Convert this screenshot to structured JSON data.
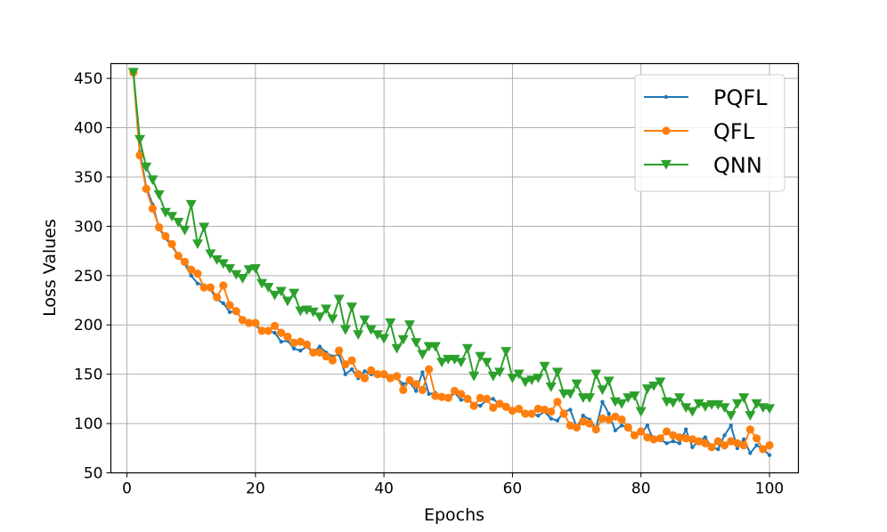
{
  "chart_data": {
    "type": "line",
    "xlabel": "Epochs",
    "ylabel": "Loss Values",
    "xlim": [
      -2.5,
      104.5
    ],
    "ylim": [
      50,
      465
    ],
    "xticks": [
      0,
      20,
      40,
      60,
      80,
      100
    ],
    "yticks": [
      50,
      100,
      150,
      200,
      250,
      300,
      350,
      400,
      450
    ],
    "grid": true,
    "legend_position": "top-right",
    "x": [
      1,
      2,
      3,
      4,
      5,
      6,
      7,
      8,
      9,
      10,
      11,
      12,
      13,
      14,
      15,
      16,
      17,
      18,
      19,
      20,
      21,
      22,
      23,
      24,
      25,
      26,
      27,
      28,
      29,
      30,
      31,
      32,
      33,
      34,
      35,
      36,
      37,
      38,
      39,
      40,
      41,
      42,
      43,
      44,
      45,
      46,
      47,
      48,
      49,
      50,
      51,
      52,
      53,
      54,
      55,
      56,
      57,
      58,
      59,
      60,
      61,
      62,
      63,
      64,
      65,
      66,
      67,
      68,
      69,
      70,
      71,
      72,
      73,
      74,
      75,
      76,
      77,
      78,
      79,
      80,
      81,
      82,
      83,
      84,
      85,
      86,
      87,
      88,
      89,
      90,
      91,
      92,
      93,
      94,
      95,
      96,
      97,
      98,
      99,
      100
    ],
    "series": [
      {
        "name": "PQFL",
        "color": "#1f77b4",
        "marker": "small-dot",
        "values": [
          456,
          376,
          340,
          322,
          298,
          288,
          280,
          270,
          262,
          250,
          242,
          240,
          236,
          226,
          222,
          213,
          214,
          205,
          204,
          200,
          193,
          194,
          192,
          183,
          184,
          176,
          174,
          178,
          172,
          178,
          172,
          168,
          170,
          150,
          155,
          146,
          153,
          150,
          149,
          148,
          145,
          146,
          140,
          142,
          133,
          152,
          130,
          131,
          126,
          125,
          131,
          124,
          124,
          120,
          118,
          124,
          125,
          119,
          116,
          112,
          114,
          108,
          110,
          108,
          112,
          105,
          103,
          112,
          114,
          96,
          108,
          104,
          95,
          122,
          110,
          93,
          98,
          96,
          88,
          90,
          98,
          82,
          84,
          80,
          82,
          80,
          94,
          76,
          82,
          86,
          76,
          74,
          88,
          98,
          75,
          84,
          70,
          78,
          74,
          68
        ]
      },
      {
        "name": "QFL",
        "color": "#ff7f0e",
        "marker": "circle",
        "values": [
          456,
          372,
          338,
          318,
          299,
          290,
          282,
          270,
          264,
          256,
          252,
          238,
          238,
          228,
          240,
          220,
          214,
          205,
          202,
          202,
          194,
          194,
          199,
          192,
          188,
          182,
          183,
          180,
          172,
          172,
          168,
          164,
          174,
          160,
          164,
          150,
          146,
          154,
          150,
          150,
          146,
          148,
          134,
          144,
          140,
          134,
          155,
          128,
          127,
          126,
          133,
          130,
          125,
          118,
          126,
          125,
          116,
          120,
          117,
          113,
          115,
          110,
          110,
          115,
          114,
          112,
          122,
          110,
          98,
          96,
          102,
          100,
          94,
          105,
          104,
          107,
          104,
          96,
          88,
          92,
          86,
          84,
          85,
          92,
          88,
          86,
          85,
          84,
          82,
          80,
          76,
          82,
          78,
          82,
          80,
          78,
          94,
          85,
          74,
          78
        ]
      },
      {
        "name": "QNN",
        "color": "#2ca02c",
        "marker": "triangle-down",
        "values": [
          456,
          388,
          360,
          347,
          332,
          314,
          310,
          304,
          296,
          322,
          282,
          299,
          272,
          266,
          262,
          257,
          251,
          247,
          256,
          257,
          242,
          238,
          230,
          234,
          224,
          232,
          214,
          215,
          213,
          208,
          216,
          206,
          226,
          195,
          218,
          190,
          205,
          195,
          190,
          186,
          202,
          176,
          185,
          200,
          182,
          170,
          178,
          178,
          162,
          165,
          165,
          162,
          176,
          148,
          168,
          162,
          148,
          152,
          173,
          146,
          150,
          142,
          144,
          146,
          158,
          137,
          152,
          130,
          130,
          140,
          126,
          126,
          150,
          134,
          143,
          122,
          120,
          126,
          128,
          112,
          135,
          138,
          142,
          122,
          121,
          126,
          116,
          112,
          120,
          117,
          119,
          119,
          116,
          108,
          120,
          126,
          108,
          120,
          116,
          115
        ]
      }
    ]
  }
}
